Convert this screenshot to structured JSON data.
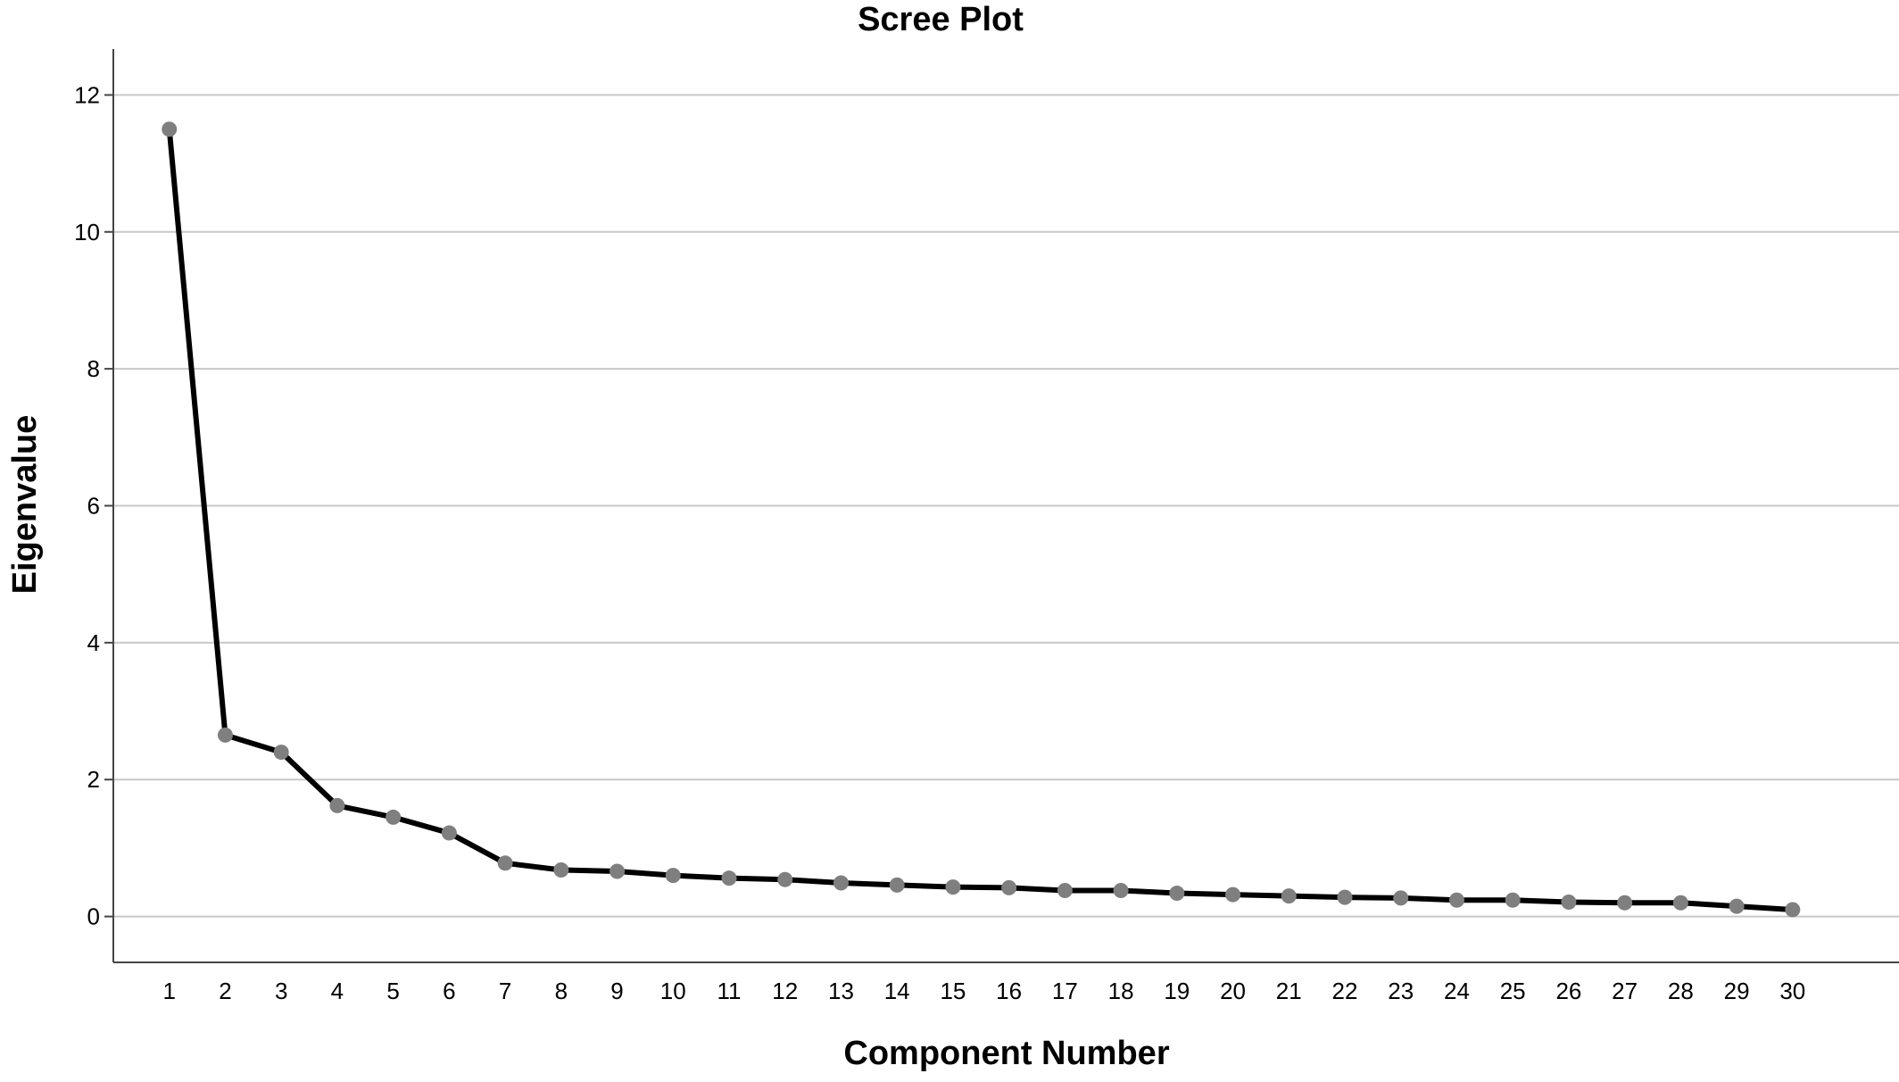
{
  "chart_data": {
    "type": "line",
    "title": "Scree Plot",
    "xlabel": "Component Number",
    "ylabel": "Eigenvalue",
    "x": [
      1,
      2,
      3,
      4,
      5,
      6,
      7,
      8,
      9,
      10,
      11,
      12,
      13,
      14,
      15,
      16,
      17,
      18,
      19,
      20,
      21,
      22,
      23,
      24,
      25,
      26,
      27,
      28,
      29,
      30
    ],
    "x_tick_labels": [
      "1",
      "2",
      "3",
      "4",
      "5",
      "6",
      "7",
      "8",
      "9",
      "10",
      "11",
      "12",
      "13",
      "14",
      "15",
      "16",
      "17",
      "18",
      "19",
      "20",
      "21",
      "22",
      "23",
      "24",
      "25",
      "26",
      "27",
      "28",
      "29",
      "30"
    ],
    "y": [
      11.5,
      2.65,
      2.4,
      1.62,
      1.45,
      1.22,
      0.78,
      0.68,
      0.66,
      0.6,
      0.56,
      0.54,
      0.49,
      0.46,
      0.43,
      0.42,
      0.38,
      0.38,
      0.34,
      0.32,
      0.3,
      0.28,
      0.27,
      0.24,
      0.24,
      0.21,
      0.2,
      0.2,
      0.15,
      0.1
    ],
    "y_ticks": [
      0,
      2,
      4,
      6,
      8,
      10,
      12
    ],
    "y_tick_labels": [
      "0",
      "2",
      "4",
      "6",
      "8",
      "10",
      "12"
    ],
    "xlim": [
      0,
      31.9
    ],
    "ylim": [
      -0.67,
      12.67
    ],
    "grid": "horizontal",
    "legend": "none",
    "colors": {
      "line": "#000000",
      "marker": "#7f7f7f",
      "grid": "#c8c8c8",
      "axis": "#444444"
    }
  }
}
